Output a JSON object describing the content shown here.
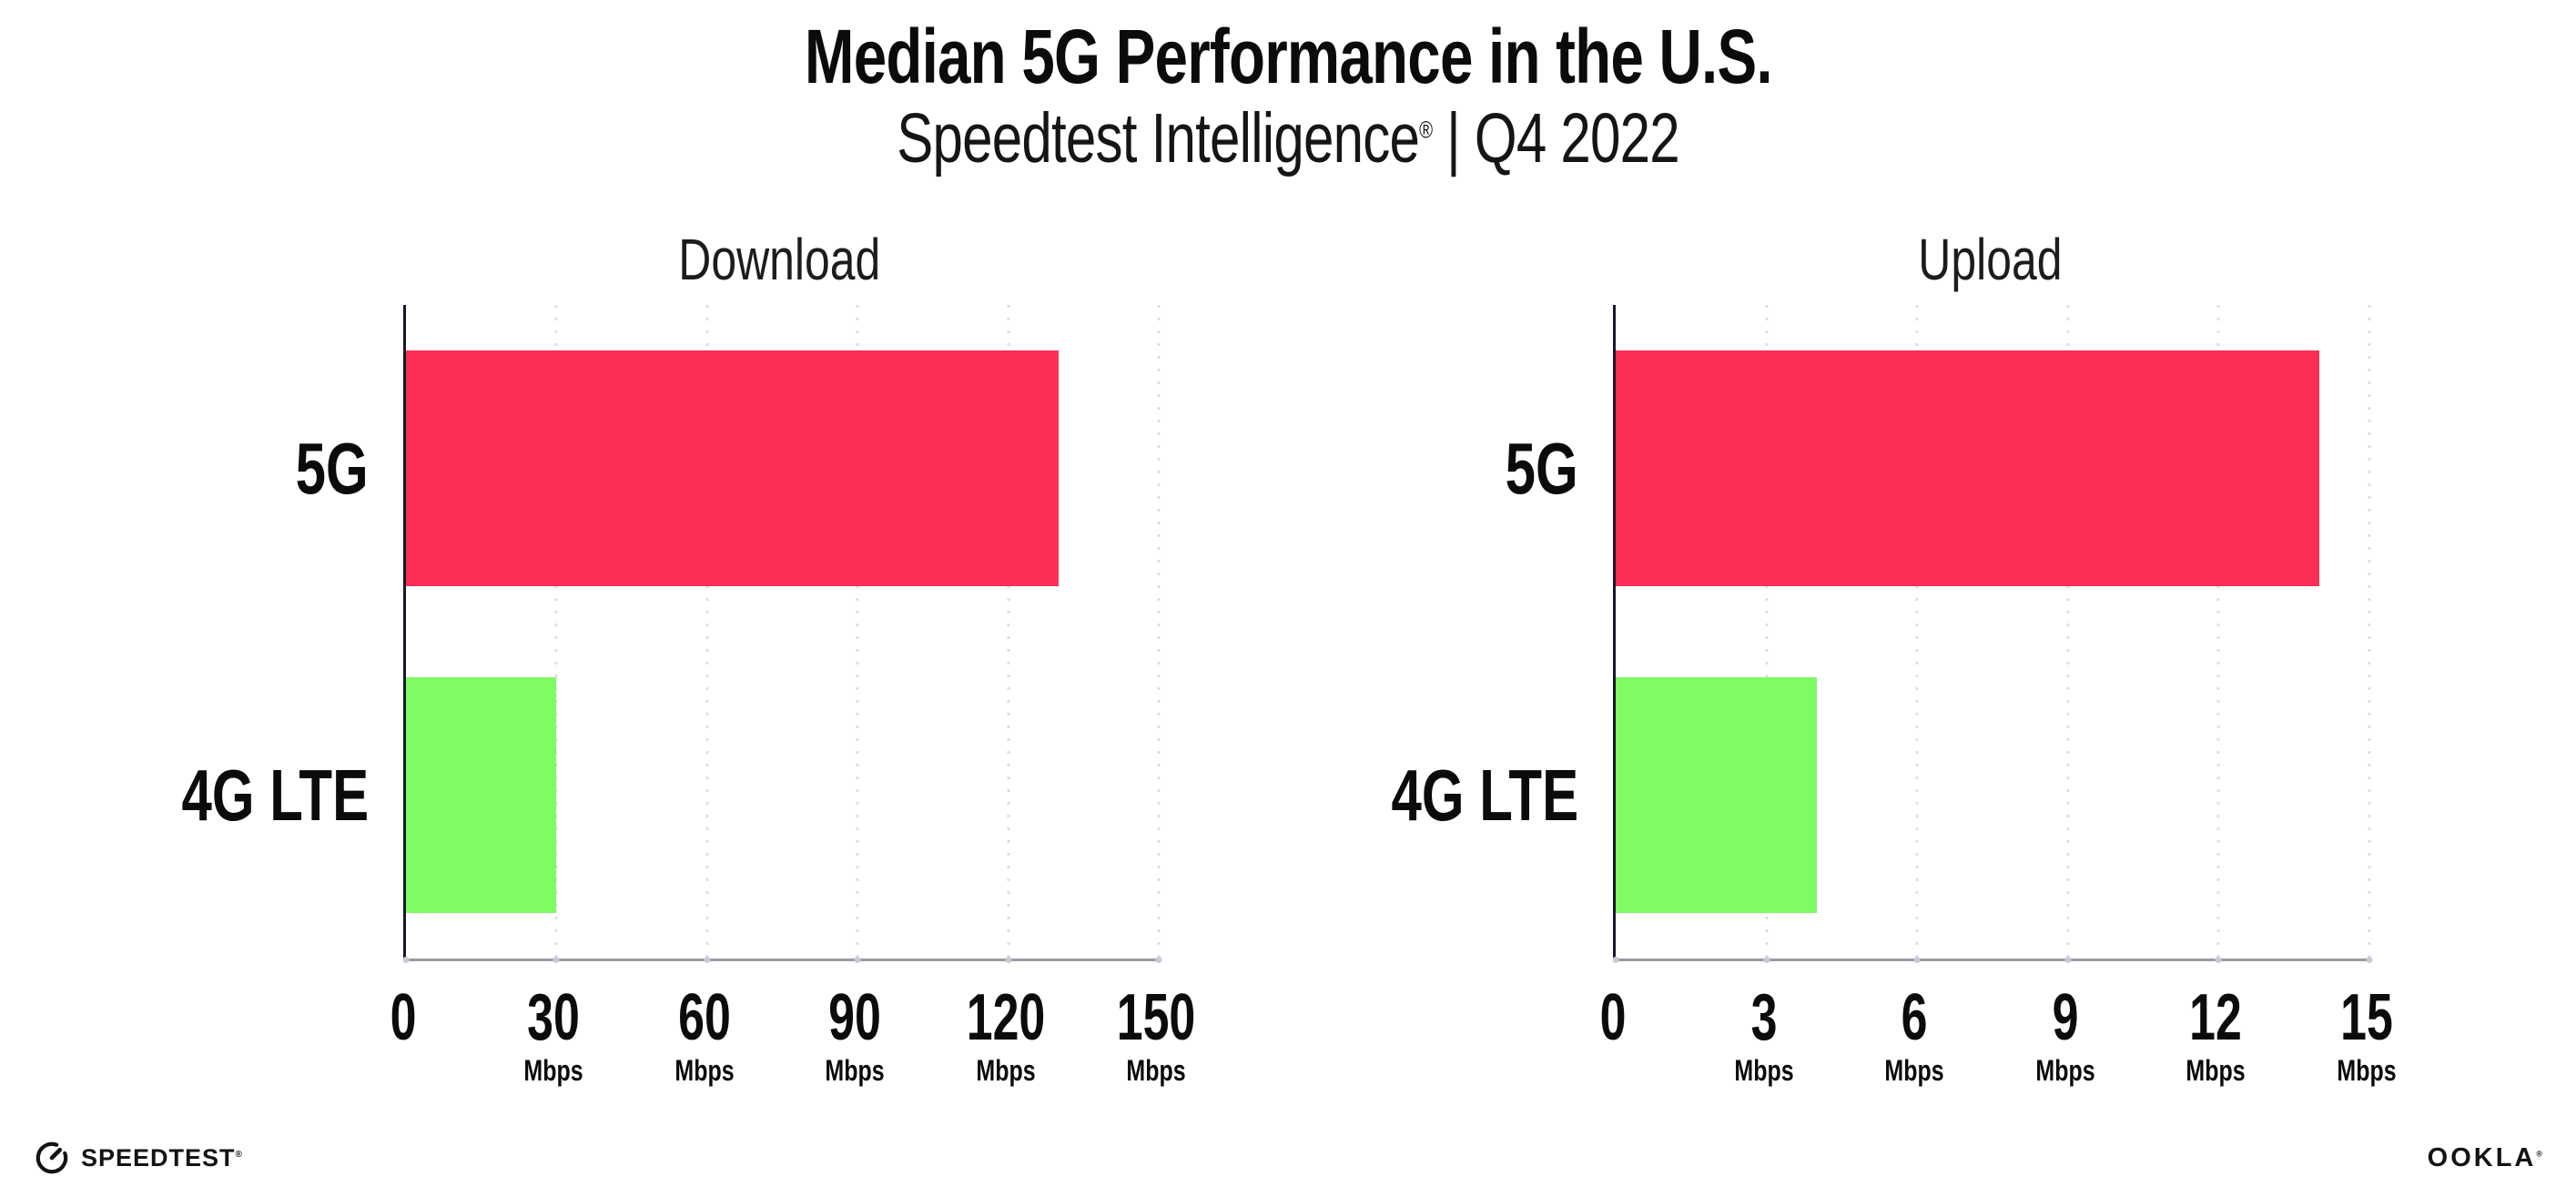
{
  "header": {
    "title": "Median 5G Performance in the U.S.",
    "subtitle_brand": "Speedtest Intelligence",
    "subtitle_reg": "®",
    "subtitle_rest": " | Q4 2022"
  },
  "footer": {
    "speedtest_label": "SPEEDTEST",
    "speedtest_reg": "®",
    "ookla_label": "OOKLA",
    "ookla_reg": "®"
  },
  "colors": {
    "bar_5g": "#FD2E55",
    "bar_4g_lte": "#80FB64",
    "grid": "#DEDEE9",
    "xaxis": "#9B9BA1",
    "yaxis": "#17172C",
    "tick": "#C9C9DC",
    "text": "#0B0B0C"
  },
  "chart_data": [
    {
      "type": "bar",
      "orientation": "horizontal",
      "title": "Download",
      "categories": [
        "5G",
        "4G LTE"
      ],
      "values": [
        130,
        30
      ],
      "unit": "Mbps",
      "xlim": [
        0,
        150
      ],
      "ticks": [
        0,
        30,
        60,
        90,
        120,
        150
      ],
      "grid": true,
      "legend": "none",
      "bar_colors": [
        "#FD2E55",
        "#80FB64"
      ]
    },
    {
      "type": "bar",
      "orientation": "horizontal",
      "title": "Upload",
      "categories": [
        "5G",
        "4G LTE"
      ],
      "values": [
        14,
        4
      ],
      "unit": "Mbps",
      "xlim": [
        0,
        15
      ],
      "ticks": [
        0,
        3,
        6,
        9,
        12,
        15
      ],
      "grid": true,
      "legend": "none",
      "bar_colors": [
        "#FD2E55",
        "#80FB64"
      ]
    }
  ]
}
